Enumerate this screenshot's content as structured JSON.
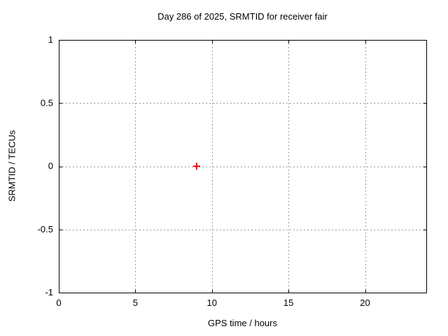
{
  "chart_data": {
    "type": "scatter",
    "title": "Day 286 of 2025, SRMTID for receiver fair",
    "xlabel": "GPS time / hours",
    "ylabel": "SRMTID / TECUs",
    "xlim": [
      0,
      24
    ],
    "ylim": [
      -1,
      1
    ],
    "xticks": {
      "values": [
        0,
        5,
        10,
        15,
        20
      ],
      "labels": [
        "0",
        "5",
        "10",
        "15",
        "20"
      ]
    },
    "yticks": {
      "values": [
        -1,
        -0.5,
        0,
        0.5,
        1
      ],
      "labels": [
        "-1",
        "-0.5",
        "0",
        "0.5",
        "1"
      ]
    },
    "grid": true,
    "legend": "none",
    "series": [
      {
        "name": "SRMTID",
        "marker": "plus",
        "color": "#f00000",
        "points": [
          {
            "x": 9,
            "y": 0
          }
        ]
      }
    ],
    "colors": {
      "background": "#ffffff",
      "border": "#000000",
      "grid": "#9c9c9c",
      "text": "#000000"
    }
  }
}
